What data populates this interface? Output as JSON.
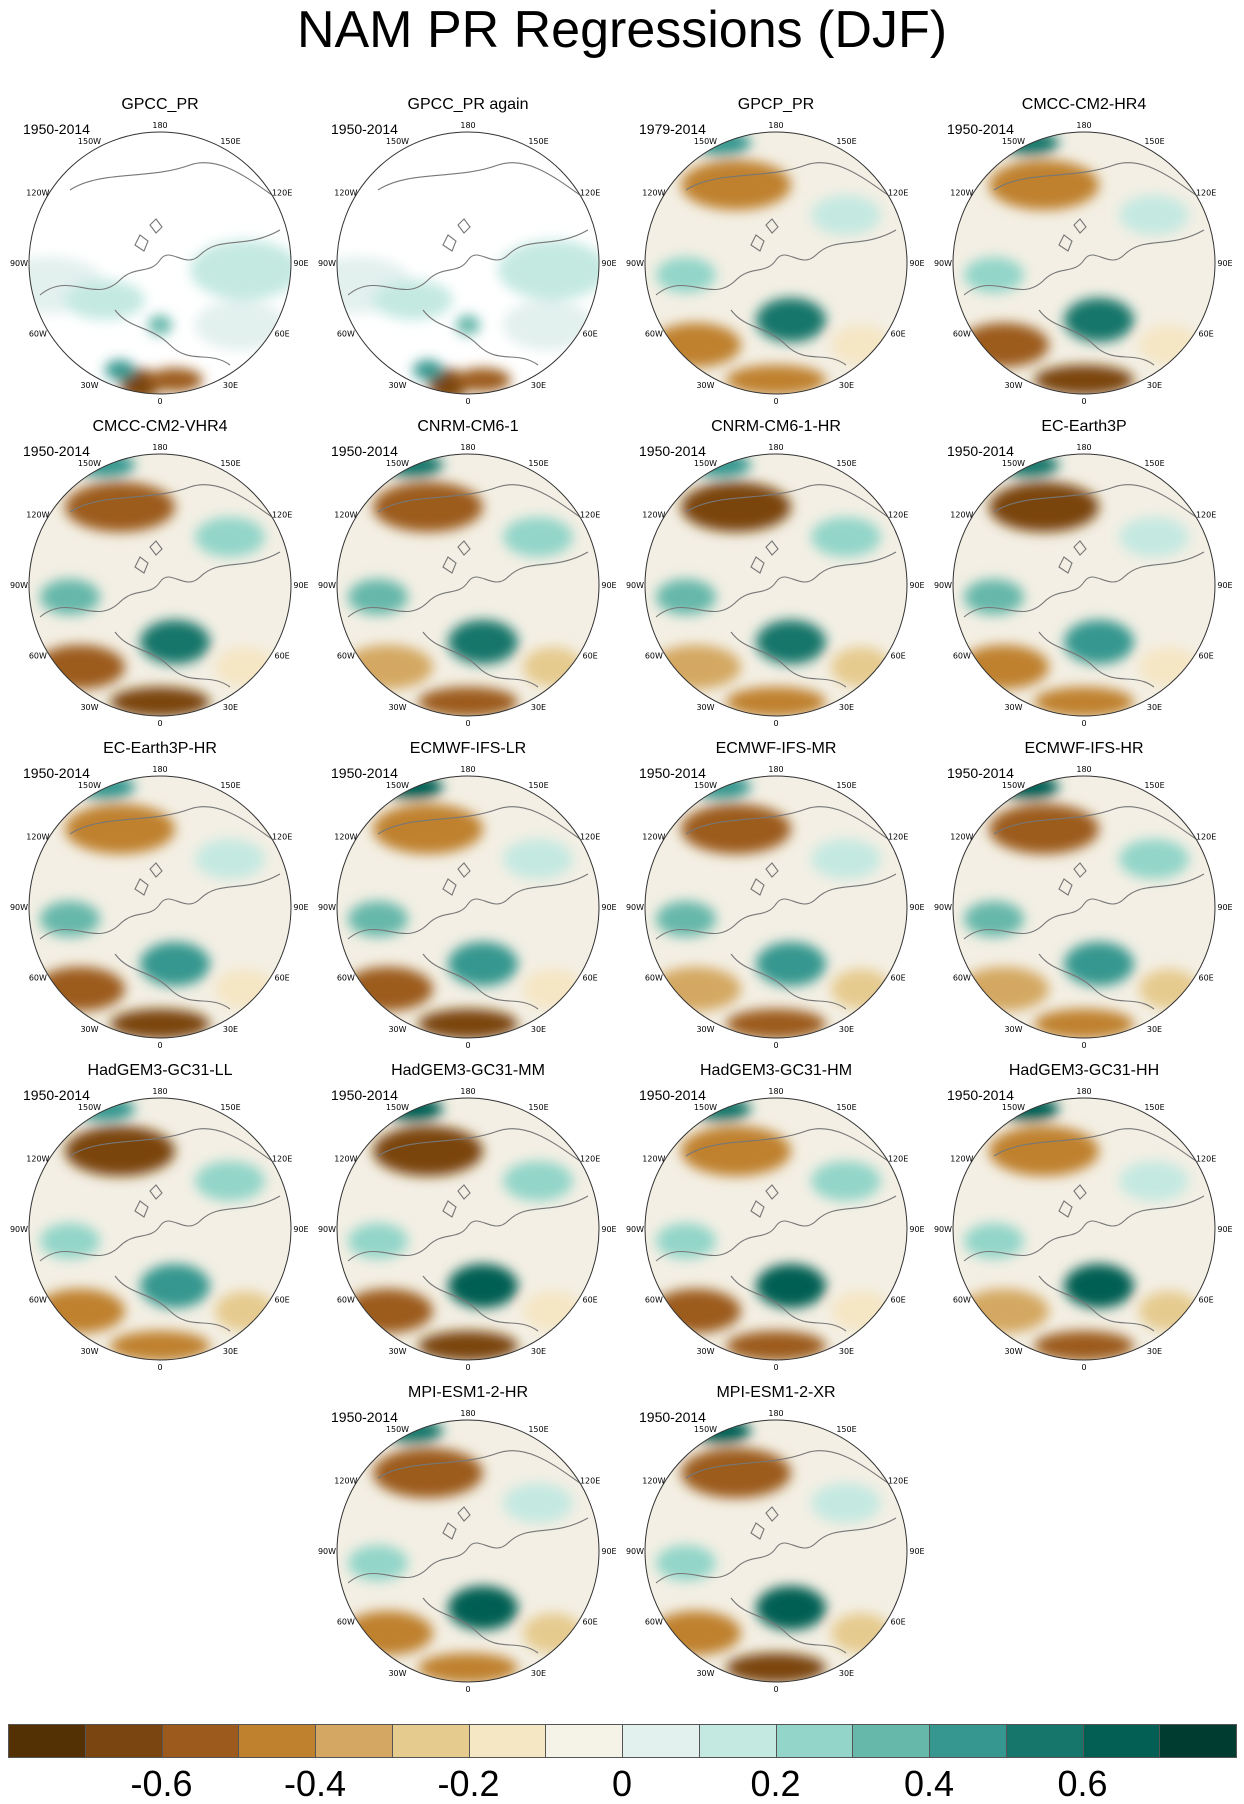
{
  "title": "NAM PR Regressions (DJF)",
  "lon_labels": [
    "180",
    "150E",
    "120E",
    "90E",
    "60E",
    "30E",
    "0",
    "30W",
    "60W",
    "90W",
    "120W",
    "150W"
  ],
  "panels": [
    {
      "name": "GPCC_PR",
      "years": "1950-2014",
      "land_only": true
    },
    {
      "name": "GPCC_PR again",
      "years": "1950-2014",
      "land_only": true
    },
    {
      "name": "GPCP_PR",
      "years": "1979-2014",
      "land_only": false
    },
    {
      "name": "CMCC-CM2-HR4",
      "years": "1950-2014",
      "land_only": false
    },
    {
      "name": "CMCC-CM2-VHR4",
      "years": "1950-2014",
      "land_only": false
    },
    {
      "name": "CNRM-CM6-1",
      "years": "1950-2014",
      "land_only": false
    },
    {
      "name": "CNRM-CM6-1-HR",
      "years": "1950-2014",
      "land_only": false
    },
    {
      "name": "EC-Earth3P",
      "years": "1950-2014",
      "land_only": false
    },
    {
      "name": "EC-Earth3P-HR",
      "years": "1950-2014",
      "land_only": false
    },
    {
      "name": "ECMWF-IFS-LR",
      "years": "1950-2014",
      "land_only": false
    },
    {
      "name": "ECMWF-IFS-MR",
      "years": "1950-2014",
      "land_only": false
    },
    {
      "name": "ECMWF-IFS-HR",
      "years": "1950-2014",
      "land_only": false
    },
    {
      "name": "HadGEM3-GC31-LL",
      "years": "1950-2014",
      "land_only": false
    },
    {
      "name": "HadGEM3-GC31-MM",
      "years": "1950-2014",
      "land_only": false
    },
    {
      "name": "HadGEM3-GC31-HM",
      "years": "1950-2014",
      "land_only": false
    },
    {
      "name": "HadGEM3-GC31-HH",
      "years": "1950-2014",
      "land_only": false
    },
    {
      "name": "MPI-ESM1-2-HR",
      "years": "1950-2014",
      "land_only": false
    },
    {
      "name": "MPI-ESM1-2-XR",
      "years": "1950-2014",
      "land_only": false
    }
  ],
  "colorbar": {
    "colors": [
      "#543005",
      "#7a4510",
      "#9c5b1d",
      "#bf812d",
      "#d4a862",
      "#e6cb8f",
      "#f5e6c4",
      "#f5f2e8",
      "#e2f0ee",
      "#c4e9e1",
      "#93d5c9",
      "#66b8aa",
      "#35978f",
      "#16766b",
      "#035f53",
      "#003c30"
    ],
    "labels": [
      "-0.6",
      "-0.4",
      "-0.2",
      "0",
      "0.2",
      "0.4",
      "0.6"
    ],
    "label_values": [
      -0.6,
      -0.4,
      -0.2,
      0,
      0.2,
      0.4,
      0.6
    ],
    "min": -0.8,
    "max": 0.8
  }
}
